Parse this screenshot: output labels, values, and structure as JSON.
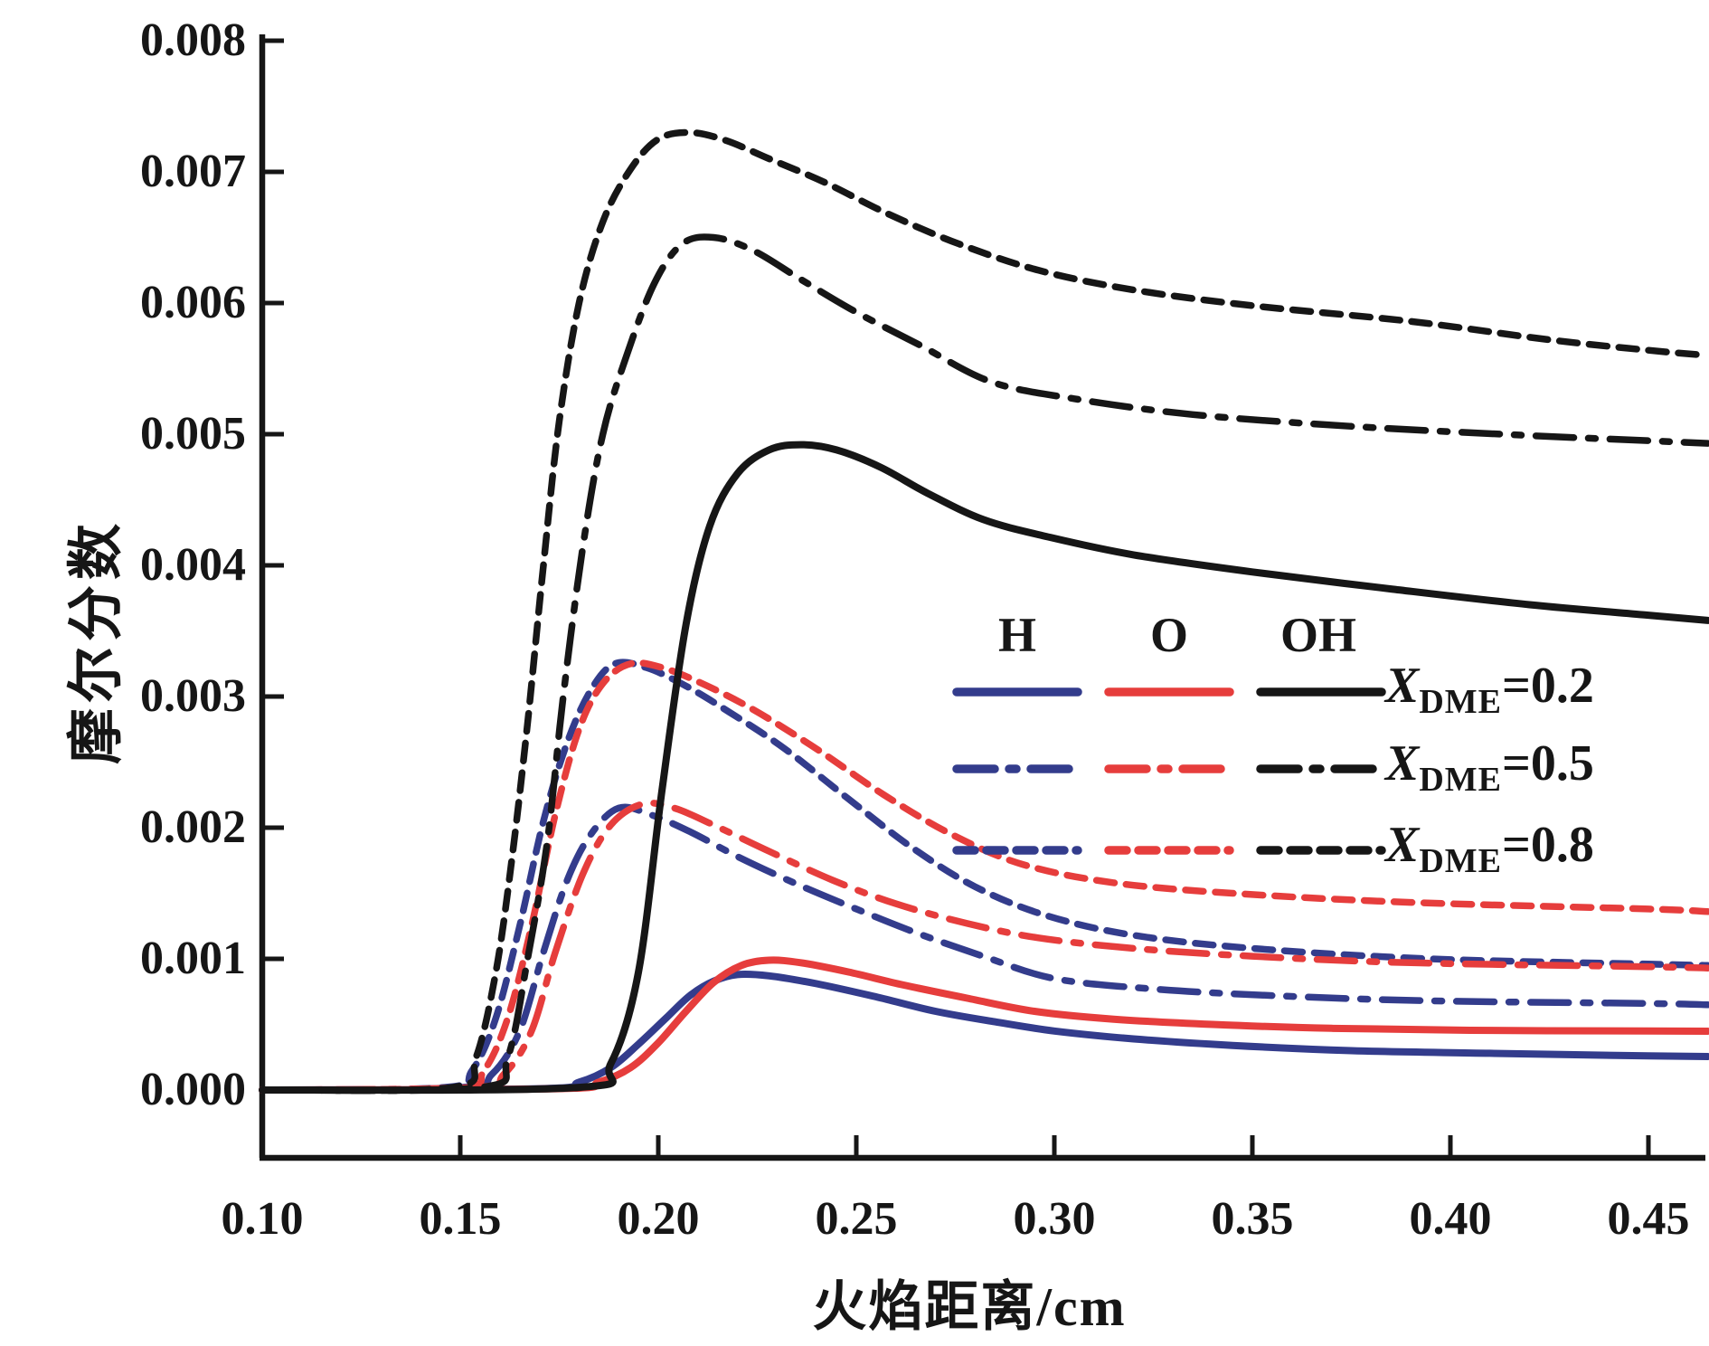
{
  "figure": {
    "background": "#ffffff",
    "accent_colors": {
      "H": "#333c8c",
      "O": "#e63d3c",
      "OH": "#161616"
    }
  },
  "axes": {
    "x_title": "火焰距离/cm",
    "y_title": "摩尔分数",
    "x_tick_labels": [
      "0.10",
      "0.15",
      "0.20",
      "0.25",
      "0.30",
      "0.35",
      "0.40",
      "0.45"
    ],
    "x_tick_values": [
      0.1,
      0.15,
      0.2,
      0.25,
      0.3,
      0.35,
      0.4,
      0.45
    ],
    "y_tick_labels": [
      "0.000",
      "0.001",
      "0.002",
      "0.003",
      "0.004",
      "0.005",
      "0.006",
      "0.007",
      "0.008"
    ],
    "y_tick_values": [
      0.0,
      0.001,
      0.002,
      0.003,
      0.004,
      0.005,
      0.006,
      0.007,
      0.008
    ]
  },
  "legend": {
    "headers": [
      "H",
      "O",
      "OH"
    ],
    "rows": [
      {
        "x": "X",
        "sub": "DME",
        "eq": "=0.2",
        "style": "solid"
      },
      {
        "x": "X",
        "sub": "DME",
        "eq": "=0.5",
        "style": "dashdot"
      },
      {
        "x": "X",
        "sub": "DME",
        "eq": "=0.8",
        "style": "dashed"
      }
    ]
  },
  "chart_data": {
    "type": "line",
    "title": "",
    "xlabel": "火焰距离/cm",
    "ylabel": "摩尔分数",
    "xlim": [
      0.1,
      0.465
    ],
    "ylim": [
      -0.0005,
      0.008
    ],
    "grid": false,
    "legend_position": "center-right",
    "colors": {
      "H": "#333c8c",
      "O": "#e63d3c",
      "OH": "#161616"
    },
    "series": [
      {
        "name": "H X_DME=0.2",
        "species": "H",
        "x_dme": 0.2,
        "style": "solid",
        "color_key": "H",
        "x": [
          0.1,
          0.17,
          0.18,
          0.188,
          0.195,
          0.202,
          0.208,
          0.214,
          0.22,
          0.228,
          0.24,
          0.255,
          0.27,
          0.285,
          0.3,
          0.32,
          0.345,
          0.375,
          0.41,
          0.45,
          0.465
        ],
        "y": [
          0,
          1e-05,
          6e-05,
          0.00017,
          0.00035,
          0.00055,
          0.00072,
          0.00083,
          0.00088,
          0.00087,
          0.00081,
          0.00071,
          0.0006,
          0.00052,
          0.00045,
          0.00039,
          0.00034,
          0.0003,
          0.00028,
          0.00026,
          0.000255
        ]
      },
      {
        "name": "O X_DME=0.2",
        "species": "O",
        "x_dme": 0.2,
        "style": "solid",
        "color_key": "O",
        "x": [
          0.1,
          0.175,
          0.185,
          0.193,
          0.2,
          0.207,
          0.214,
          0.221,
          0.228,
          0.236,
          0.248,
          0.262,
          0.278,
          0.295,
          0.315,
          0.34,
          0.37,
          0.405,
          0.45,
          0.465
        ],
        "y": [
          0,
          1e-05,
          6e-05,
          0.00017,
          0.00036,
          0.0006,
          0.00082,
          0.00095,
          0.00099,
          0.00097,
          0.0009,
          0.0008,
          0.0007,
          0.0006,
          0.00054,
          0.0005,
          0.00047,
          0.000455,
          0.00045,
          0.000448
        ]
      },
      {
        "name": "H X_DME=0.5",
        "species": "H",
        "x_dme": 0.5,
        "style": "dashdot",
        "color_key": "H",
        "x": [
          0.1,
          0.15,
          0.158,
          0.165,
          0.171,
          0.177,
          0.183,
          0.19,
          0.198,
          0.208,
          0.22,
          0.235,
          0.25,
          0.265,
          0.282,
          0.3,
          0.325,
          0.355,
          0.395,
          0.45,
          0.465
        ],
        "y": [
          0,
          2e-05,
          0.00012,
          0.00045,
          0.00105,
          0.0016,
          0.00195,
          0.00215,
          0.0021,
          0.00197,
          0.00178,
          0.00157,
          0.00138,
          0.0012,
          0.00102,
          0.00085,
          0.00077,
          0.00072,
          0.00068,
          0.00066,
          0.00065
        ]
      },
      {
        "name": "O X_DME=0.5",
        "species": "O",
        "x_dme": 0.5,
        "style": "dashdot",
        "color_key": "O",
        "x": [
          0.1,
          0.153,
          0.161,
          0.168,
          0.174,
          0.181,
          0.188,
          0.196,
          0.204,
          0.214,
          0.228,
          0.244,
          0.26,
          0.278,
          0.296,
          0.32,
          0.35,
          0.39,
          0.45,
          0.465
        ],
        "y": [
          0,
          2e-05,
          0.00012,
          0.00045,
          0.00105,
          0.00165,
          0.00202,
          0.00218,
          0.00215,
          0.00202,
          0.00182,
          0.0016,
          0.00142,
          0.00127,
          0.00116,
          0.00108,
          0.00102,
          0.00097,
          0.00094,
          0.00093
        ]
      },
      {
        "name": "H X_DME=0.8",
        "species": "H",
        "x_dme": 0.8,
        "style": "dashed",
        "color_key": "H",
        "x": [
          0.1,
          0.146,
          0.153,
          0.159,
          0.165,
          0.171,
          0.177,
          0.183,
          0.189,
          0.197,
          0.207,
          0.218,
          0.232,
          0.248,
          0.264,
          0.28,
          0.298,
          0.32,
          0.35,
          0.395,
          0.45,
          0.465
        ],
        "y": [
          0,
          2e-05,
          0.00015,
          0.00055,
          0.00125,
          0.00205,
          0.00265,
          0.00305,
          0.00325,
          0.00322,
          0.00308,
          0.00288,
          0.0026,
          0.00222,
          0.00185,
          0.00155,
          0.00133,
          0.00118,
          0.00108,
          0.001,
          0.00096,
          0.00095
        ]
      },
      {
        "name": "O X_DME=0.8",
        "species": "O",
        "x_dme": 0.8,
        "style": "dashed",
        "color_key": "O",
        "x": [
          0.1,
          0.149,
          0.156,
          0.162,
          0.168,
          0.174,
          0.18,
          0.186,
          0.193,
          0.201,
          0.211,
          0.224,
          0.24,
          0.257,
          0.274,
          0.292,
          0.315,
          0.345,
          0.39,
          0.45,
          0.465
        ],
        "y": [
          0,
          2e-05,
          0.00015,
          0.00055,
          0.00125,
          0.0021,
          0.00275,
          0.0031,
          0.00325,
          0.00322,
          0.0031,
          0.0029,
          0.0026,
          0.00225,
          0.00195,
          0.00172,
          0.00158,
          0.0015,
          0.00143,
          0.00138,
          0.00136
        ]
      },
      {
        "name": "OH X_DME=0.2",
        "species": "OH",
        "x_dme": 0.2,
        "style": "solid",
        "color_key": "OH",
        "x": [
          0.1,
          0.18,
          0.188,
          0.195,
          0.201,
          0.207,
          0.213,
          0.22,
          0.228,
          0.236,
          0.245,
          0.256,
          0.268,
          0.282,
          0.298,
          0.32,
          0.35,
          0.385,
          0.42,
          0.45,
          0.465
        ],
        "y": [
          0,
          2e-05,
          0.0002,
          0.0009,
          0.0023,
          0.00355,
          0.0043,
          0.0047,
          0.00488,
          0.00492,
          0.00488,
          0.00475,
          0.00455,
          0.00435,
          0.00422,
          0.00408,
          0.00395,
          0.00382,
          0.0037,
          0.00362,
          0.00358
        ]
      },
      {
        "name": "OH X_DME=0.5",
        "species": "OH",
        "x_dme": 0.5,
        "style": "dashdot",
        "color_key": "OH",
        "x": [
          0.1,
          0.155,
          0.162,
          0.167,
          0.172,
          0.176,
          0.181,
          0.186,
          0.192,
          0.199,
          0.206,
          0.214,
          0.224,
          0.236,
          0.25,
          0.266,
          0.284,
          0.305,
          0.335,
          0.375,
          0.42,
          0.45,
          0.465
        ],
        "y": [
          0,
          2e-05,
          0.00025,
          0.001,
          0.0019,
          0.003,
          0.00415,
          0.005,
          0.0056,
          0.00615,
          0.00645,
          0.0065,
          0.0064,
          0.00618,
          0.00593,
          0.00568,
          0.0054,
          0.00527,
          0.00515,
          0.00506,
          0.00499,
          0.00495,
          0.00493
        ]
      },
      {
        "name": "OH X_DME=0.8",
        "species": "OH",
        "x_dme": 0.8,
        "style": "dashed",
        "color_key": "OH",
        "x": [
          0.1,
          0.148,
          0.154,
          0.159,
          0.163,
          0.167,
          0.171,
          0.175,
          0.18,
          0.186,
          0.193,
          0.2,
          0.208,
          0.217,
          0.228,
          0.242,
          0.258,
          0.276,
          0.296,
          0.32,
          0.35,
          0.39,
          0.425,
          0.45,
          0.465
        ],
        "y": [
          0,
          2e-05,
          0.00025,
          0.0009,
          0.00175,
          0.0028,
          0.004,
          0.0051,
          0.006,
          0.00662,
          0.00702,
          0.00725,
          0.0073,
          0.00724,
          0.0071,
          0.00692,
          0.00668,
          0.00645,
          0.00625,
          0.0061,
          0.00598,
          0.00586,
          0.00572,
          0.00564,
          0.0056
        ]
      }
    ]
  }
}
